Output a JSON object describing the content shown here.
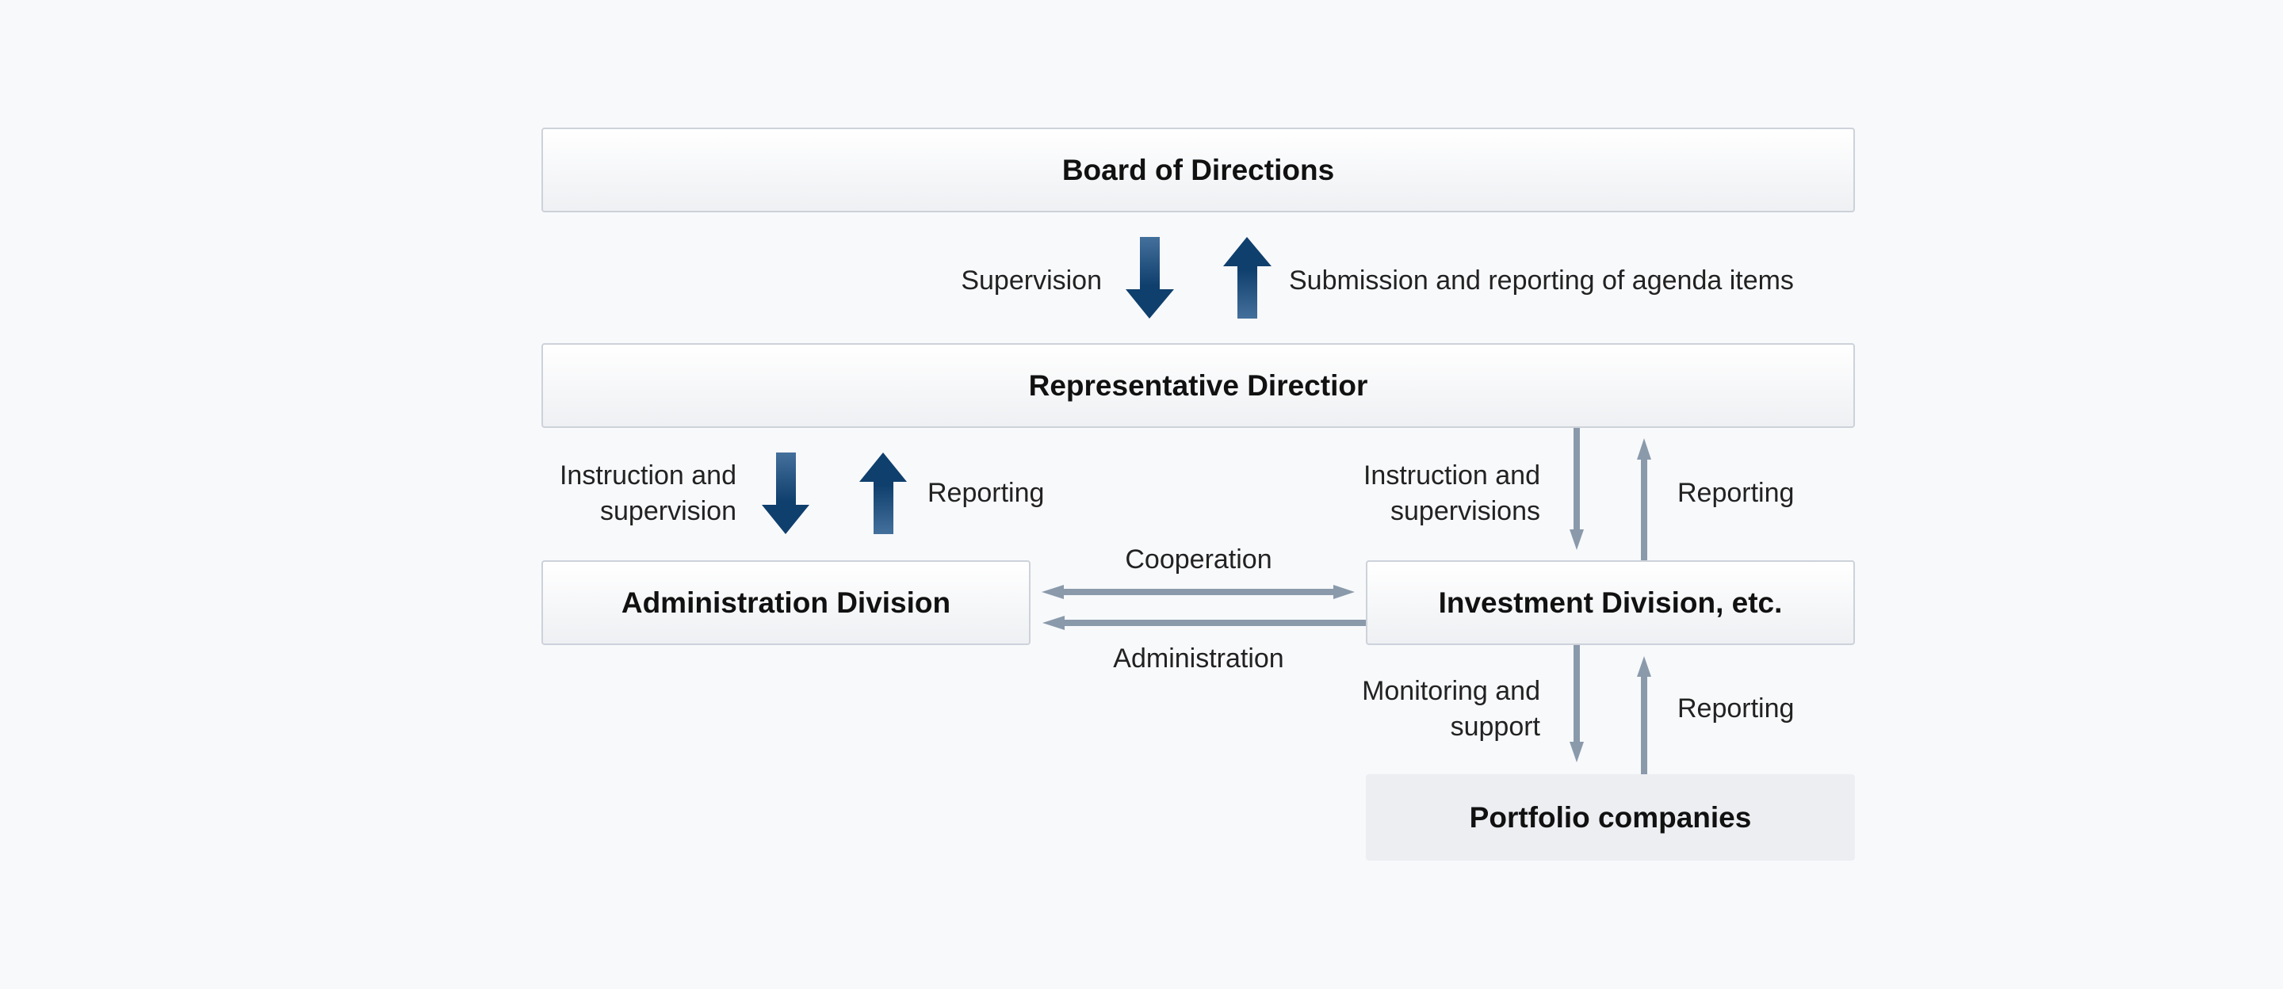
{
  "boxes": {
    "board": "Board of Directions",
    "representative": "Representative Directior",
    "administration": "Administration Division",
    "investment": "Investment Division, etc.",
    "portfolio": "Portfolio companies"
  },
  "labels": {
    "supervision": "Supervision",
    "submission": "Submission and reporting of agenda items",
    "admin_instruction_1": "Instruction and",
    "admin_instruction_2": "supervision",
    "admin_reporting": "Reporting",
    "inv_instruction_1": "Instruction and",
    "inv_instruction_2": "supervisions",
    "inv_reporting": "Reporting",
    "cooperation": "Cooperation",
    "administration": "Administration",
    "monitoring_1": "Monitoring and",
    "monitoring_2": "support",
    "portfolio_reporting": "Reporting"
  },
  "colors": {
    "thick_arrow_dark": "#0f3f6d",
    "thick_arrow_light": "#44709c",
    "thin_arrow": "#8a9aab"
  }
}
